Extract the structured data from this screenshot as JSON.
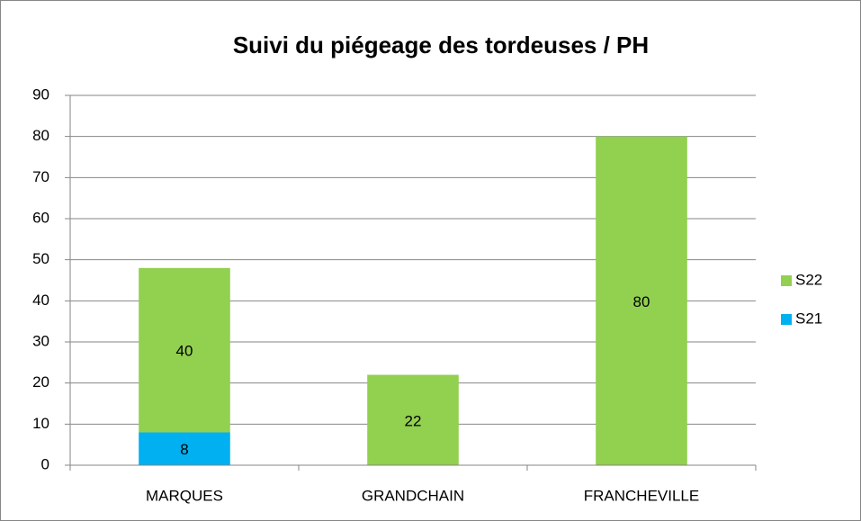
{
  "chart_data": {
    "type": "bar",
    "stacked": true,
    "title": "Suivi du piégeage des tordeuses / PH",
    "categories": [
      "MARQUES",
      "GRANDCHAIN",
      "FRANCHEVILLE"
    ],
    "series": [
      {
        "name": "S21",
        "color": "#00b0f0",
        "values": [
          8,
          null,
          null
        ]
      },
      {
        "name": "S22",
        "color": "#92d050",
        "values": [
          40,
          22,
          80
        ]
      }
    ],
    "ylim": [
      0,
      90
    ],
    "yticks": [
      0,
      10,
      20,
      30,
      40,
      50,
      60,
      70,
      80,
      90
    ],
    "grid": true,
    "legend": "right"
  }
}
